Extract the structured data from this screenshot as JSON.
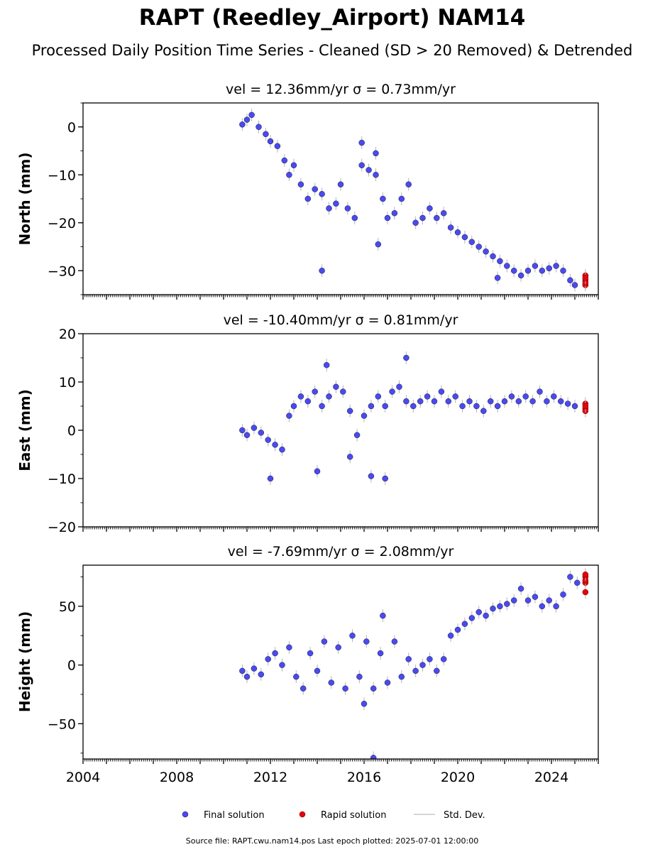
{
  "figure": {
    "title": "RAPT (Reedley_Airport) NAM14",
    "subtitle": "Processed Daily Position Time Series - Cleaned (SD > 20 Removed) & Detrended",
    "footer": "Source file: RAPT.cwu.nam14.pos  Last epoch plotted: 2025-07-01 12:00:00",
    "legend": {
      "final": "Final solution",
      "rapid": "Rapid solution",
      "std": "Std. Dev."
    },
    "colors": {
      "final": "#4a4af0",
      "rapid": "#e8000b",
      "std": "#b4b4b4",
      "edge": "#1a1a3a"
    }
  },
  "chart_data": [
    {
      "type": "scatter",
      "title": "vel = 12.36mm/yr   σ = 0.73mm/yr",
      "ylabel": "North (mm)",
      "xlim": [
        2004.0,
        2026.0
      ],
      "ylim": [
        -35.0,
        5.0
      ],
      "xticks": [
        2004,
        2008,
        2012,
        2016,
        2020,
        2024
      ],
      "yticks": [
        0,
        -10,
        -20,
        -30
      ],
      "grid": false,
      "series": [
        {
          "name": "Final solution",
          "points": [
            [
              2010.8,
              0.5
            ],
            [
              2011.0,
              1.5
            ],
            [
              2011.2,
              2.5
            ],
            [
              2011.5,
              0.0
            ],
            [
              2011.8,
              -1.5
            ],
            [
              2012.0,
              -3.0
            ],
            [
              2012.3,
              -4.0
            ],
            [
              2012.6,
              -7.0
            ],
            [
              2012.8,
              -10.0
            ],
            [
              2013.0,
              -8.0
            ],
            [
              2013.3,
              -12.0
            ],
            [
              2013.6,
              -15.0
            ],
            [
              2013.9,
              -13.0
            ],
            [
              2014.2,
              -14.0
            ],
            [
              2014.5,
              -17.0
            ],
            [
              2014.8,
              -16.0
            ],
            [
              2015.0,
              -12.0
            ],
            [
              2015.3,
              -17.0
            ],
            [
              2015.6,
              -19.0
            ],
            [
              2015.9,
              -8.0
            ],
            [
              2016.2,
              -9.0
            ],
            [
              2016.5,
              -10.0
            ],
            [
              2016.8,
              -15.0
            ],
            [
              2017.0,
              -19.0
            ],
            [
              2017.3,
              -18.0
            ],
            [
              2017.6,
              -15.0
            ],
            [
              2017.9,
              -12.0
            ],
            [
              2018.2,
              -20.0
            ],
            [
              2018.5,
              -19.0
            ],
            [
              2018.8,
              -17.0
            ],
            [
              2019.1,
              -19.0
            ],
            [
              2019.4,
              -18.0
            ],
            [
              2019.7,
              -21.0
            ],
            [
              2020.0,
              -22.0
            ],
            [
              2020.3,
              -23.0
            ],
            [
              2020.6,
              -24.0
            ],
            [
              2020.9,
              -25.0
            ],
            [
              2021.2,
              -26.0
            ],
            [
              2021.5,
              -27.0
            ],
            [
              2021.8,
              -28.0
            ],
            [
              2022.1,
              -29.0
            ],
            [
              2022.4,
              -30.0
            ],
            [
              2022.7,
              -31.0
            ],
            [
              2023.0,
              -30.0
            ],
            [
              2023.3,
              -29.0
            ],
            [
              2023.6,
              -30.0
            ],
            [
              2023.9,
              -29.5
            ],
            [
              2024.2,
              -29.0
            ],
            [
              2024.5,
              -30.0
            ],
            [
              2024.8,
              -32.0
            ],
            [
              2025.0,
              -33.0
            ],
            [
              2014.2,
              -30.0
            ],
            [
              2015.9,
              -3.3
            ],
            [
              2016.5,
              -5.5
            ],
            [
              2016.6,
              -24.5
            ],
            [
              2021.7,
              -31.5
            ]
          ]
        },
        {
          "name": "Rapid solution",
          "points": [
            [
              2025.45,
              -31.0
            ],
            [
              2025.45,
              -32.0
            ],
            [
              2025.45,
              -33.0
            ],
            [
              2025.45,
              -32.5
            ],
            [
              2025.45,
              -31.5
            ]
          ]
        }
      ]
    },
    {
      "type": "scatter",
      "title": "vel = -10.40mm/yr   σ = 0.81mm/yr",
      "ylabel": "East (mm)",
      "xlim": [
        2004.0,
        2026.0
      ],
      "ylim": [
        -20.0,
        20.0
      ],
      "xticks": [
        2004,
        2008,
        2012,
        2016,
        2020,
        2024
      ],
      "yticks": [
        20,
        10,
        0,
        -10,
        -20
      ],
      "grid": false,
      "series": [
        {
          "name": "Final solution",
          "points": [
            [
              2010.8,
              0.0
            ],
            [
              2011.0,
              -1.0
            ],
            [
              2011.3,
              0.5
            ],
            [
              2011.6,
              -0.5
            ],
            [
              2011.9,
              -2.0
            ],
            [
              2012.2,
              -3.0
            ],
            [
              2012.5,
              -4.0
            ],
            [
              2012.8,
              3.0
            ],
            [
              2013.0,
              5.0
            ],
            [
              2013.3,
              7.0
            ],
            [
              2013.6,
              6.0
            ],
            [
              2013.9,
              8.0
            ],
            [
              2014.2,
              5.0
            ],
            [
              2014.5,
              7.0
            ],
            [
              2014.8,
              9.0
            ],
            [
              2015.1,
              8.0
            ],
            [
              2015.4,
              4.0
            ],
            [
              2015.7,
              -1.0
            ],
            [
              2016.0,
              3.0
            ],
            [
              2016.3,
              5.0
            ],
            [
              2016.6,
              7.0
            ],
            [
              2016.9,
              5.0
            ],
            [
              2017.2,
              8.0
            ],
            [
              2017.5,
              9.0
            ],
            [
              2017.8,
              6.0
            ],
            [
              2018.1,
              5.0
            ],
            [
              2018.4,
              6.0
            ],
            [
              2018.7,
              7.0
            ],
            [
              2019.0,
              6.0
            ],
            [
              2019.3,
              8.0
            ],
            [
              2019.6,
              6.0
            ],
            [
              2019.9,
              7.0
            ],
            [
              2020.2,
              5.0
            ],
            [
              2020.5,
              6.0
            ],
            [
              2020.8,
              5.0
            ],
            [
              2021.1,
              4.0
            ],
            [
              2021.4,
              6.0
            ],
            [
              2021.7,
              5.0
            ],
            [
              2022.0,
              6.0
            ],
            [
              2022.3,
              7.0
            ],
            [
              2022.6,
              6.0
            ],
            [
              2022.9,
              7.0
            ],
            [
              2023.2,
              6.0
            ],
            [
              2023.5,
              8.0
            ],
            [
              2023.8,
              6.0
            ],
            [
              2024.1,
              7.0
            ],
            [
              2024.4,
              6.0
            ],
            [
              2024.7,
              5.5
            ],
            [
              2025.0,
              5.0
            ],
            [
              2014.0,
              -8.5
            ],
            [
              2016.3,
              -9.5
            ],
            [
              2016.9,
              -10.0
            ],
            [
              2012.0,
              -10.0
            ],
            [
              2014.4,
              13.5
            ],
            [
              2017.8,
              15.0
            ],
            [
              2015.4,
              -5.5
            ]
          ]
        },
        {
          "name": "Rapid solution",
          "points": [
            [
              2025.45,
              4.5
            ],
            [
              2025.45,
              5.5
            ],
            [
              2025.45,
              4.0
            ],
            [
              2025.45,
              5.0
            ]
          ]
        }
      ]
    },
    {
      "type": "scatter",
      "title": "vel = -7.69mm/yr   σ = 2.08mm/yr",
      "ylabel": "Height (mm)",
      "xlim": [
        2004.0,
        2026.0
      ],
      "ylim": [
        -80.0,
        85.0
      ],
      "xticks": [
        2004,
        2008,
        2012,
        2016,
        2020,
        2024
      ],
      "yticks": [
        50,
        0,
        -50
      ],
      "grid": false,
      "series": [
        {
          "name": "Final solution",
          "points": [
            [
              2010.8,
              -5.0
            ],
            [
              2011.0,
              -10.0
            ],
            [
              2011.3,
              -3.0
            ],
            [
              2011.6,
              -8.0
            ],
            [
              2011.9,
              5.0
            ],
            [
              2012.2,
              10.0
            ],
            [
              2012.5,
              0.0
            ],
            [
              2012.8,
              15.0
            ],
            [
              2013.1,
              -10.0
            ],
            [
              2013.4,
              -20.0
            ],
            [
              2013.7,
              10.0
            ],
            [
              2014.0,
              -5.0
            ],
            [
              2014.3,
              20.0
            ],
            [
              2014.6,
              -15.0
            ],
            [
              2014.9,
              15.0
            ],
            [
              2015.2,
              -20.0
            ],
            [
              2015.5,
              25.0
            ],
            [
              2015.8,
              -10.0
            ],
            [
              2016.1,
              20.0
            ],
            [
              2016.4,
              -20.0
            ],
            [
              2016.7,
              10.0
            ],
            [
              2017.0,
              -15.0
            ],
            [
              2017.3,
              20.0
            ],
            [
              2017.6,
              -10.0
            ],
            [
              2017.9,
              5.0
            ],
            [
              2018.2,
              -5.0
            ],
            [
              2018.5,
              0.0
            ],
            [
              2018.8,
              5.0
            ],
            [
              2019.1,
              -5.0
            ],
            [
              2019.4,
              5.0
            ],
            [
              2019.7,
              25.0
            ],
            [
              2020.0,
              30.0
            ],
            [
              2020.3,
              35.0
            ],
            [
              2020.6,
              40.0
            ],
            [
              2020.9,
              45.0
            ],
            [
              2021.2,
              42.0
            ],
            [
              2021.5,
              48.0
            ],
            [
              2021.8,
              50.0
            ],
            [
              2022.1,
              52.0
            ],
            [
              2022.4,
              55.0
            ],
            [
              2022.7,
              65.0
            ],
            [
              2023.0,
              55.0
            ],
            [
              2023.3,
              58.0
            ],
            [
              2023.6,
              50.0
            ],
            [
              2023.9,
              55.0
            ],
            [
              2024.2,
              50.0
            ],
            [
              2024.5,
              60.0
            ],
            [
              2024.8,
              75.0
            ],
            [
              2025.1,
              70.0
            ],
            [
              2016.4,
              -79.0
            ],
            [
              2016.0,
              -33.0
            ],
            [
              2016.8,
              42.0
            ]
          ]
        },
        {
          "name": "Rapid solution",
          "points": [
            [
              2025.45,
              62.0
            ],
            [
              2025.45,
              70.0
            ],
            [
              2025.45,
              75.0
            ],
            [
              2025.45,
              72.0
            ],
            [
              2025.45,
              77.0
            ]
          ]
        }
      ]
    }
  ]
}
